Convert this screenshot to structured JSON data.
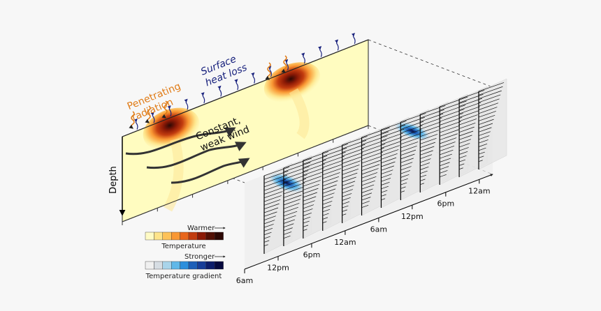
{
  "annotations": {
    "penetrating": [
      "Penetrating",
      "radiation"
    ],
    "surface": [
      "Surface",
      "heat loss"
    ],
    "wind": [
      "Constant,",
      "weak wind"
    ],
    "depth": "Depth"
  },
  "time_axis": {
    "front": [
      "6am",
      "12pm",
      "6pm",
      "12am"
    ],
    "back": [
      "6am",
      "12pm",
      "6pm",
      "12am"
    ]
  },
  "legend_temperature": {
    "arrow_label": "Warmer",
    "label": "Temperature",
    "colors": [
      "#fffbc5",
      "#fee48a",
      "#fdc259",
      "#f99834",
      "#e8661c",
      "#c23c0f",
      "#8c1a06",
      "#521005",
      "#2c0804"
    ]
  },
  "legend_gradient": {
    "arrow_label": "Stronger",
    "label": "Temperature gradient",
    "colors": [
      "#f0f0f0",
      "#d6dde3",
      "#a9d4ea",
      "#61b8e8",
      "#2c8fdc",
      "#1d5fb8",
      "#173d98",
      "#0d1d6a",
      "#06093d"
    ]
  },
  "colors": {
    "heat_arrow": "#1a237e",
    "radiation": "#e07b16",
    "panel_fill": "#fffcc0",
    "wind_arrow": "#333333"
  }
}
